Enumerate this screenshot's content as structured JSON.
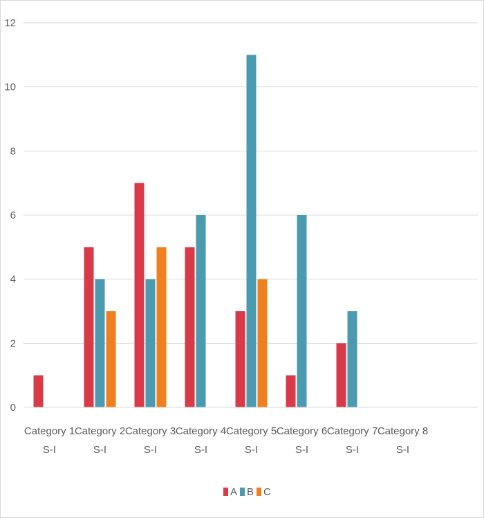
{
  "chart_data": {
    "type": "bar",
    "categories": [
      [
        "Category 1",
        "S-I"
      ],
      [
        "Category 2",
        "S-I"
      ],
      [
        "Category 3",
        "S-I"
      ],
      [
        "Category 4",
        "S-I"
      ],
      [
        "Category 5",
        "S-I"
      ],
      [
        "Category 6",
        "S-I"
      ],
      [
        "Category 7",
        "S-I"
      ],
      [
        "Category 8",
        "S-I"
      ]
    ],
    "series": [
      {
        "name": "A",
        "color": "#d93a47",
        "values": [
          1,
          5,
          7,
          5,
          3,
          1,
          2,
          0
        ]
      },
      {
        "name": "B",
        "color": "#4a9ab0",
        "values": [
          0,
          4,
          4,
          6,
          11,
          6,
          3,
          0
        ]
      },
      {
        "name": "C",
        "color": "#f0801e",
        "values": [
          0,
          3,
          5,
          0,
          4,
          0,
          0,
          0
        ]
      }
    ],
    "ylim": [
      0,
      12
    ],
    "yticks": [
      0,
      2,
      4,
      6,
      8,
      10,
      12
    ],
    "grid": true,
    "legend": "bottom"
  }
}
